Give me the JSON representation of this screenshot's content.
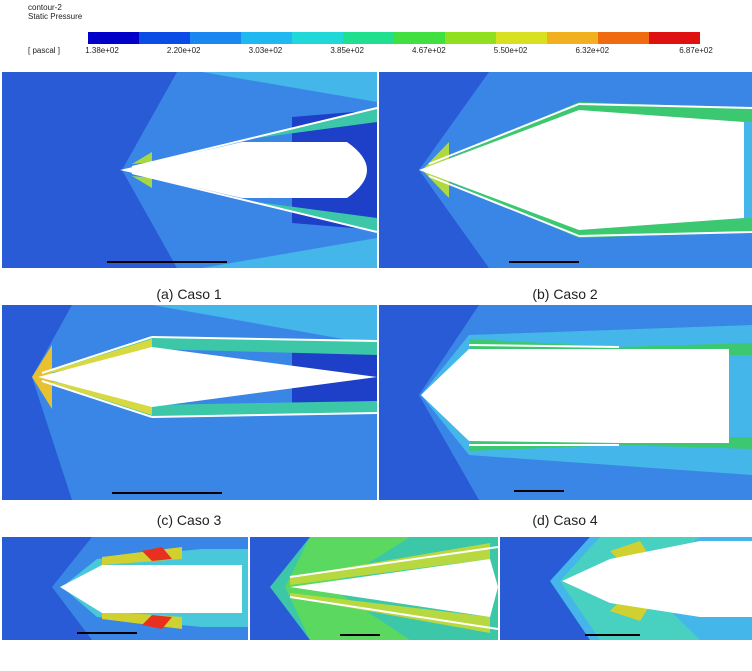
{
  "legend": {
    "name": "contour-2",
    "title": "Static Pressure",
    "unit": "[ pascal ]",
    "labels": [
      "1.38e+02",
      "2.20e+02",
      "3.03e+02",
      "3.85e+02",
      "4.67e+02",
      "5.50e+02",
      "6.32e+02",
      "6.87e+02"
    ]
  },
  "captions": [
    "(a) Caso 1",
    "(b) Caso 2",
    "(c) Caso 3",
    "(d) Caso 4"
  ]
}
